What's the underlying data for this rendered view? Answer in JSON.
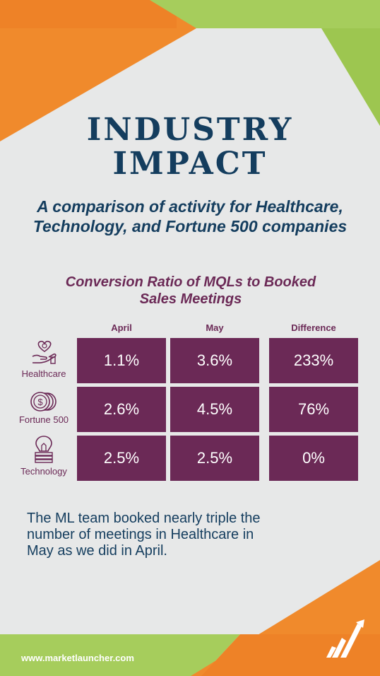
{
  "colors": {
    "navy": "#143d5e",
    "plum": "#6b2956",
    "orange": "#f08a2c",
    "green": "#a6cd5c",
    "background": "#e7e8e8"
  },
  "header": {
    "title_line1": "INDUSTRY",
    "title_line2": "IMPACT",
    "subtitle_line1": "A comparison of activity for Healthcare,",
    "subtitle_line2": "Technology, and Fortune 500 companies"
  },
  "table": {
    "title_line1": "Conversion Ratio of MQLs to Booked",
    "title_line2": "Sales Meetings",
    "columns": [
      "April",
      "May",
      "Difference"
    ],
    "rows": [
      {
        "label": "Healthcare",
        "icon": "heart-hand-icon",
        "values": [
          "1.1%",
          "3.6%",
          "233%"
        ]
      },
      {
        "label": "Fortune 500",
        "icon": "dollar-coins-icon",
        "values": [
          "2.6%",
          "4.5%",
          "76%"
        ]
      },
      {
        "label": "Technology",
        "icon": "lightbulb-icon",
        "values": [
          "2.5%",
          "2.5%",
          "0%"
        ]
      }
    ]
  },
  "summary": {
    "line1": "The ML team booked nearly triple the",
    "line2": "number of meetings in Healthcare in",
    "line3": "May as we did in April."
  },
  "footer": {
    "url": "www.marketlauncher.com",
    "logo_icon": "marketlauncher-logo-icon"
  }
}
